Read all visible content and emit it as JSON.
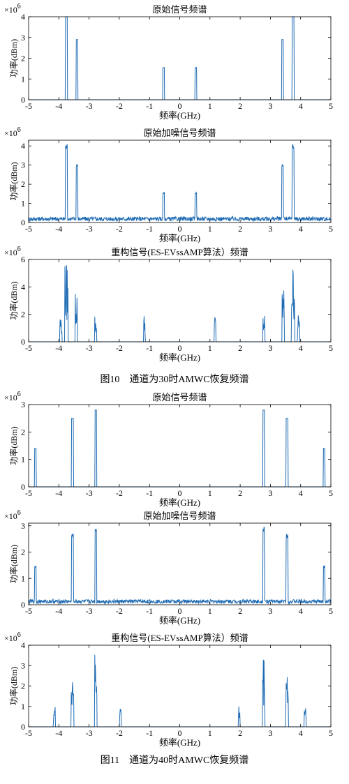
{
  "figures": [
    {
      "caption": "图10　通道为30时AMWC恢复频谱"
    },
    {
      "caption": "图11　通道为40时AMWC恢复频谱"
    }
  ],
  "chart_data": [
    {
      "type": "line",
      "title": "原始信号频谱",
      "xlabel": "频率(GHz)",
      "ylabel": "功率(dBm)",
      "exponent_label": "×10",
      "exponent_power": "6",
      "xlim": [
        -5,
        5
      ],
      "ylim": [
        0,
        4
      ],
      "xticks": [
        -5,
        -4,
        -3,
        -2,
        -1,
        0,
        1,
        2,
        3,
        4,
        5
      ],
      "yticks": [
        0,
        1,
        2,
        3,
        4
      ],
      "noise_level": 0,
      "series": [
        {
          "pulses": [
            {
              "center": -3.75,
              "width": 0.06,
              "height": 4.0,
              "shape": "rect"
            },
            {
              "center": -3.4,
              "width": 0.06,
              "height": 2.9,
              "shape": "rect"
            },
            {
              "center": -0.53,
              "width": 0.06,
              "height": 1.55,
              "shape": "rect"
            },
            {
              "center": 0.53,
              "width": 0.06,
              "height": 1.55,
              "shape": "rect"
            },
            {
              "center": 3.4,
              "width": 0.06,
              "height": 2.9,
              "shape": "rect"
            },
            {
              "center": 3.75,
              "width": 0.06,
              "height": 4.0,
              "shape": "rect"
            }
          ]
        }
      ]
    },
    {
      "type": "line",
      "title": "原始加噪信号频谱",
      "xlabel": "频率(GHz)",
      "ylabel": "功率(dBm)",
      "exponent_label": "×10",
      "exponent_power": "6",
      "xlim": [
        -5,
        5
      ],
      "ylim": [
        0,
        4.3
      ],
      "xticks": [
        -5,
        -4,
        -3,
        -2,
        -1,
        0,
        1,
        2,
        3,
        4,
        5
      ],
      "yticks": [
        0,
        1,
        2,
        3,
        4
      ],
      "noise_level": 0.3,
      "series": [
        {
          "pulses": [
            {
              "center": -3.75,
              "width": 0.06,
              "height": 4.1,
              "shape": "noisy"
            },
            {
              "center": -3.4,
              "width": 0.06,
              "height": 3.1,
              "shape": "noisy"
            },
            {
              "center": -0.53,
              "width": 0.06,
              "height": 1.6,
              "shape": "noisy"
            },
            {
              "center": 0.53,
              "width": 0.06,
              "height": 1.6,
              "shape": "noisy"
            },
            {
              "center": 3.4,
              "width": 0.06,
              "height": 3.1,
              "shape": "noisy"
            },
            {
              "center": 3.75,
              "width": 0.06,
              "height": 4.1,
              "shape": "noisy"
            }
          ]
        }
      ]
    },
    {
      "type": "line",
      "title": "重构信号(ES-EVssAMP算法）频谱",
      "xlabel": "频率(GHz)",
      "ylabel": "功率(dBm)",
      "exponent_label": "×10",
      "exponent_power": "6",
      "xlim": [
        -5,
        5
      ],
      "ylim": [
        0,
        6
      ],
      "xticks": [
        -5,
        -4,
        -3,
        -2,
        -1,
        0,
        1,
        2,
        3,
        4,
        5
      ],
      "yticks": [
        0,
        2,
        4,
        6
      ],
      "noise_level": 0,
      "series": [
        {
          "pulses": [
            {
              "center": -3.93,
              "width": 0.08,
              "height": 2.0,
              "shape": "spiky"
            },
            {
              "center": -3.75,
              "width": 0.12,
              "height": 5.7,
              "shape": "spiky"
            },
            {
              "center": -3.42,
              "width": 0.08,
              "height": 4.0,
              "shape": "spiky"
            },
            {
              "center": -2.78,
              "width": 0.07,
              "height": 2.0,
              "shape": "spiky"
            },
            {
              "center": -1.17,
              "width": 0.06,
              "height": 2.0,
              "shape": "spiky"
            },
            {
              "center": 1.17,
              "width": 0.06,
              "height": 2.0,
              "shape": "spiky"
            },
            {
              "center": 2.78,
              "width": 0.07,
              "height": 2.0,
              "shape": "spiky"
            },
            {
              "center": 3.42,
              "width": 0.08,
              "height": 4.0,
              "shape": "spiky"
            },
            {
              "center": 3.75,
              "width": 0.12,
              "height": 5.7,
              "shape": "spiky"
            },
            {
              "center": 3.93,
              "width": 0.08,
              "height": 2.0,
              "shape": "spiky"
            }
          ]
        }
      ]
    },
    {
      "type": "line",
      "title": "原始信号频谱",
      "xlabel": "频率(GHz)",
      "ylabel": "功率(dBm)",
      "exponent_label": "×10",
      "exponent_power": "6",
      "xlim": [
        -5,
        5
      ],
      "ylim": [
        0,
        3
      ],
      "xticks": [
        -5,
        -4,
        -3,
        -2,
        -1,
        0,
        1,
        2,
        3,
        4,
        5
      ],
      "yticks": [
        0,
        1,
        2,
        3
      ],
      "noise_level": 0,
      "series": [
        {
          "pulses": [
            {
              "center": -4.78,
              "width": 0.06,
              "height": 1.4,
              "shape": "rect"
            },
            {
              "center": -3.55,
              "width": 0.06,
              "height": 2.5,
              "shape": "rect"
            },
            {
              "center": -2.78,
              "width": 0.06,
              "height": 2.8,
              "shape": "rect"
            },
            {
              "center": 2.78,
              "width": 0.06,
              "height": 2.8,
              "shape": "rect"
            },
            {
              "center": 3.55,
              "width": 0.06,
              "height": 2.5,
              "shape": "rect"
            },
            {
              "center": 4.78,
              "width": 0.06,
              "height": 1.4,
              "shape": "rect"
            }
          ]
        }
      ]
    },
    {
      "type": "line",
      "title": "原始加噪信号频谱",
      "xlabel": "频率(GHz)",
      "ylabel": "功率(dBm)",
      "exponent_label": "×10",
      "exponent_power": "6",
      "xlim": [
        -5,
        5
      ],
      "ylim": [
        0,
        3.1
      ],
      "xticks": [
        -5,
        -4,
        -3,
        -2,
        -1,
        0,
        1,
        2,
        3,
        4,
        5
      ],
      "yticks": [
        0,
        1,
        2,
        3
      ],
      "noise_level": 0.2,
      "series": [
        {
          "pulses": [
            {
              "center": -4.78,
              "width": 0.06,
              "height": 1.5,
              "shape": "noisy"
            },
            {
              "center": -3.55,
              "width": 0.06,
              "height": 2.7,
              "shape": "noisy"
            },
            {
              "center": -2.78,
              "width": 0.06,
              "height": 3.0,
              "shape": "noisy"
            },
            {
              "center": 2.78,
              "width": 0.06,
              "height": 3.0,
              "shape": "noisy"
            },
            {
              "center": 3.55,
              "width": 0.06,
              "height": 2.7,
              "shape": "noisy"
            },
            {
              "center": 4.78,
              "width": 0.06,
              "height": 1.5,
              "shape": "noisy"
            }
          ]
        }
      ]
    },
    {
      "type": "line",
      "title": "重构信号(ES-EVssAMP算法）频谱",
      "xlabel": "频率(GHz)",
      "ylabel": "功率(dBm)",
      "exponent_label": "×10",
      "exponent_power": "6",
      "xlim": [
        -5,
        5
      ],
      "ylim": [
        0,
        4
      ],
      "xticks": [
        -5,
        -4,
        -3,
        -2,
        -1,
        0,
        1,
        2,
        3,
        4,
        5
      ],
      "yticks": [
        0,
        1,
        2,
        3,
        4
      ],
      "noise_level": 0,
      "series": [
        {
          "pulses": [
            {
              "center": -4.15,
              "width": 0.06,
              "height": 1.0,
              "shape": "spiky"
            },
            {
              "center": -3.55,
              "width": 0.08,
              "height": 3.2,
              "shape": "spiky"
            },
            {
              "center": -2.78,
              "width": 0.08,
              "height": 3.6,
              "shape": "spiky"
            },
            {
              "center": -1.97,
              "width": 0.06,
              "height": 1.1,
              "shape": "spiky"
            },
            {
              "center": 1.97,
              "width": 0.06,
              "height": 1.1,
              "shape": "spiky"
            },
            {
              "center": 2.78,
              "width": 0.08,
              "height": 3.6,
              "shape": "spiky"
            },
            {
              "center": 3.55,
              "width": 0.08,
              "height": 3.2,
              "shape": "spiky"
            },
            {
              "center": 4.15,
              "width": 0.06,
              "height": 1.0,
              "shape": "spiky"
            }
          ]
        }
      ]
    }
  ]
}
